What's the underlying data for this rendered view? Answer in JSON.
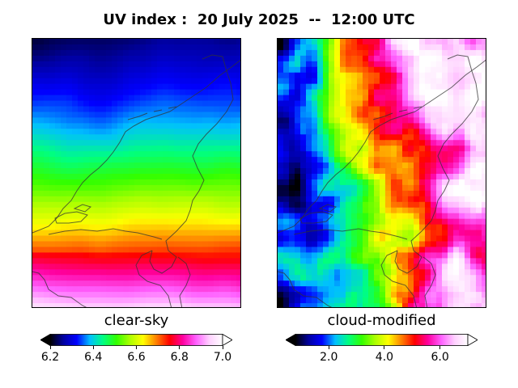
{
  "title": "UV index :  20 July 2025  --  12:00 UTC",
  "chart_data": [
    {
      "type": "heatmap",
      "title": "clear-sky",
      "colorbar": {
        "ticks": [
          6.2,
          6.4,
          6.6,
          6.8,
          7.0
        ],
        "tick_labels": [
          "6.2",
          "6.4",
          "6.6",
          "6.8",
          "7.0"
        ],
        "range": [
          6.2,
          7.0
        ],
        "extend": "both"
      },
      "field": {
        "trend": "increases from north to south",
        "north_value": 6.25,
        "south_value": 6.92
      }
    },
    {
      "type": "heatmap",
      "title": "cloud-modified",
      "colorbar": {
        "ticks": [
          2.0,
          4.0,
          6.0
        ],
        "tick_labels": [
          "2.0",
          "4.0",
          "6.0"
        ],
        "range": [
          0.8,
          7.0
        ],
        "extend": "both"
      },
      "field": {
        "trend": "low values in the west, high values in the east",
        "west_value": 1.6,
        "east_value": 6.3
      }
    }
  ],
  "colors": {
    "colormap": [
      "#000000",
      "#0000a0",
      "#0000ff",
      "#00bfff",
      "#00ff80",
      "#32ff00",
      "#aaff00",
      "#ffff00",
      "#ff8000",
      "#ff0000",
      "#ff00a0",
      "#ff60ff",
      "#ffd0ff",
      "#ffffff"
    ],
    "coastline": "#333333"
  }
}
